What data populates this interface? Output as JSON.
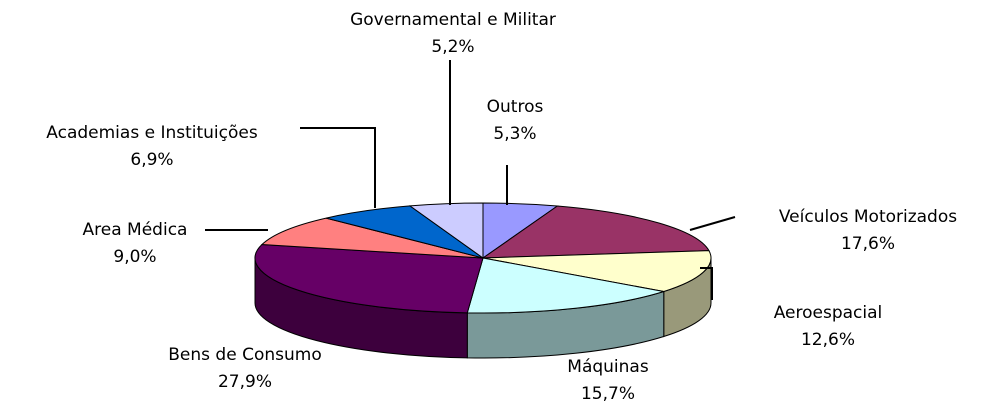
{
  "chart_data": {
    "type": "pie3d",
    "categories": [
      "Outros",
      "Veículos Motorizados",
      "Aeroespacial",
      "Máquinas",
      "Bens de Consumo",
      "Area Médica",
      "Academias e Instituições",
      "Governamental e Militar"
    ],
    "values": [
      5.3,
      17.6,
      12.6,
      15.7,
      27.9,
      9.0,
      6.9,
      5.2
    ],
    "value_labels": [
      "5,3%",
      "17,6%",
      "12,6%",
      "15,7%",
      "27,9%",
      "9,0%",
      "6,9%",
      "5,2%"
    ],
    "colors": [
      "#9999ff",
      "#993366",
      "#ffffcc",
      "#ccffff",
      "#660066",
      "#ff8080",
      "#0066cc",
      "#ccccff"
    ]
  }
}
